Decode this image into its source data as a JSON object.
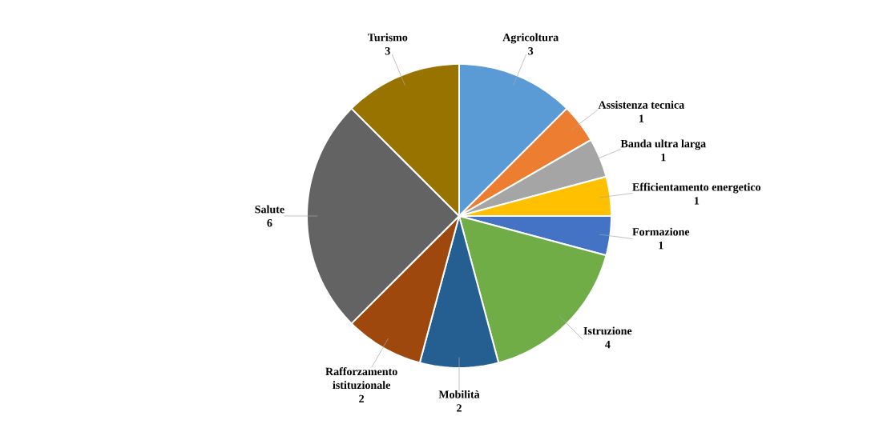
{
  "chart_data": {
    "type": "pie",
    "categories": [
      "Agricoltura",
      "Assistenza tecnica",
      "Banda ultra larga",
      "Efficientamento energetico",
      "Formazione",
      "Istruzione",
      "Mobilità",
      "Rafforzamento istituzionale",
      "Salute",
      "Turismo"
    ],
    "values": [
      3,
      1,
      1,
      1,
      1,
      4,
      2,
      2,
      6,
      3
    ],
    "colors": [
      "#5b9bd5",
      "#ed7d31",
      "#a5a5a5",
      "#ffc000",
      "#4472c4",
      "#70ad47",
      "#255e91",
      "#9e480e",
      "#636363",
      "#997300"
    ],
    "data_labels": true
  }
}
